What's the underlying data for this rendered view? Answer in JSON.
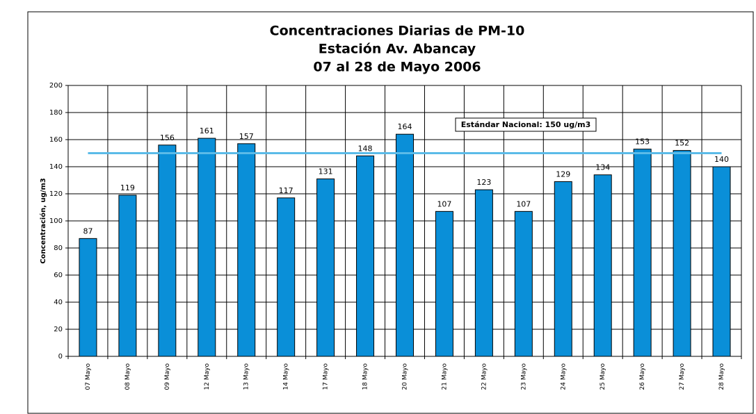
{
  "chart_data": {
    "type": "bar",
    "title": [
      "Concentraciones Diarias de PM-10",
      "Estación Av. Abancay",
      "07 al 28 de Mayo 2006"
    ],
    "y_label": "Concentración, ug/m3",
    "categories": [
      "07 Mayo",
      "08 Mayo",
      "09 Mayo",
      "12 Mayo",
      "13 Mayo",
      "14 Mayo",
      "17 Mayo",
      "18 Mayo",
      "20 Mayo",
      "21 Mayo",
      "22 Mayo",
      "23 Mayo",
      "24 Mayo",
      "25 Mayo",
      "26 Mayo",
      "27 Mayo",
      "28 Mayo"
    ],
    "values": [
      87,
      119,
      156,
      161,
      157,
      117,
      131,
      148,
      164,
      107,
      123,
      107,
      129,
      134,
      153,
      152,
      140
    ],
    "color": "#0a8fd8",
    "ylim": [
      0,
      200
    ],
    "yticks": [
      0,
      20,
      40,
      60,
      80,
      100,
      120,
      140,
      160,
      180,
      200
    ],
    "grid": true,
    "reference_line": {
      "value": 150,
      "label": "Estándar Nacional: 150 ug/m3",
      "color": "#5bbbe8"
    }
  }
}
